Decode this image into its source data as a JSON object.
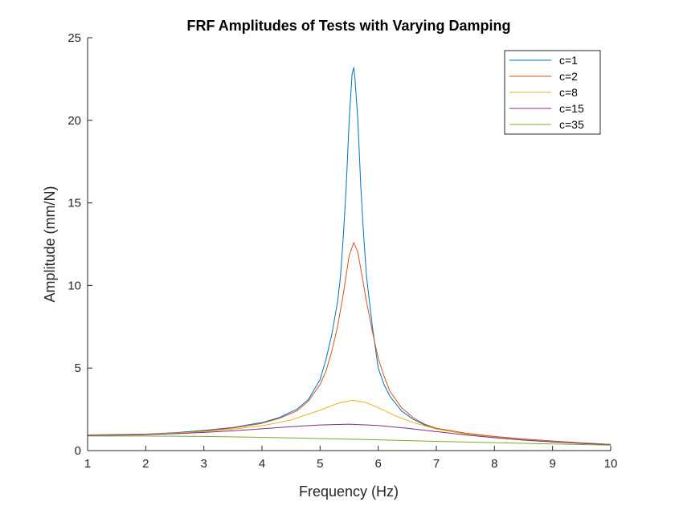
{
  "chart_data": {
    "type": "line",
    "title": "FRF Amplitudes of Tests with Varying Damping",
    "xlabel": "Frequency (Hz)",
    "ylabel": "Amplitude (mm/N)",
    "xlim": [
      1,
      10
    ],
    "ylim": [
      0,
      25
    ],
    "xticks": [
      1,
      2,
      3,
      4,
      5,
      6,
      7,
      8,
      9,
      10
    ],
    "yticks": [
      0,
      5,
      10,
      15,
      20,
      25
    ],
    "grid": false,
    "legend_position": "top-right",
    "series": [
      {
        "name": "c=1",
        "color": "#0072BD",
        "points": [
          [
            1,
            0.95
          ],
          [
            1.5,
            0.97
          ],
          [
            2,
            1.0
          ],
          [
            2.5,
            1.08
          ],
          [
            3,
            1.22
          ],
          [
            3.5,
            1.4
          ],
          [
            4,
            1.7
          ],
          [
            4.3,
            2.0
          ],
          [
            4.6,
            2.5
          ],
          [
            4.8,
            3.1
          ],
          [
            5.0,
            4.3
          ],
          [
            5.1,
            5.5
          ],
          [
            5.2,
            7.0
          ],
          [
            5.3,
            9.0
          ],
          [
            5.35,
            10.5
          ],
          [
            5.4,
            13.0
          ],
          [
            5.45,
            16.0
          ],
          [
            5.5,
            20.0
          ],
          [
            5.55,
            22.8
          ],
          [
            5.58,
            23.2
          ],
          [
            5.6,
            22.5
          ],
          [
            5.65,
            20.0
          ],
          [
            5.7,
            16.0
          ],
          [
            5.75,
            13.0
          ],
          [
            5.8,
            10.5
          ],
          [
            5.9,
            7.5
          ],
          [
            6.0,
            5.0
          ],
          [
            6.1,
            4.0
          ],
          [
            6.2,
            3.3
          ],
          [
            6.4,
            2.4
          ],
          [
            6.6,
            1.9
          ],
          [
            6.8,
            1.55
          ],
          [
            7.0,
            1.35
          ],
          [
            7.5,
            1.05
          ],
          [
            8.0,
            0.85
          ],
          [
            8.5,
            0.7
          ],
          [
            9.0,
            0.58
          ],
          [
            9.5,
            0.47
          ],
          [
            10.0,
            0.38
          ]
        ]
      },
      {
        "name": "c=2",
        "color": "#D95319",
        "points": [
          [
            1,
            0.93
          ],
          [
            1.5,
            0.96
          ],
          [
            2,
            0.99
          ],
          [
            2.5,
            1.06
          ],
          [
            3,
            1.18
          ],
          [
            3.5,
            1.37
          ],
          [
            4,
            1.65
          ],
          [
            4.3,
            1.95
          ],
          [
            4.6,
            2.4
          ],
          [
            4.8,
            3.0
          ],
          [
            5.0,
            4.0
          ],
          [
            5.1,
            4.8
          ],
          [
            5.2,
            6.0
          ],
          [
            5.3,
            7.5
          ],
          [
            5.4,
            9.5
          ],
          [
            5.5,
            11.8
          ],
          [
            5.58,
            12.6
          ],
          [
            5.65,
            12.0
          ],
          [
            5.7,
            11.0
          ],
          [
            5.8,
            9.0
          ],
          [
            5.9,
            7.2
          ],
          [
            6.0,
            5.6
          ],
          [
            6.1,
            4.5
          ],
          [
            6.2,
            3.6
          ],
          [
            6.4,
            2.6
          ],
          [
            6.6,
            2.0
          ],
          [
            6.8,
            1.6
          ],
          [
            7.0,
            1.35
          ],
          [
            7.5,
            1.05
          ],
          [
            8.0,
            0.85
          ],
          [
            8.5,
            0.7
          ],
          [
            9.0,
            0.57
          ],
          [
            9.5,
            0.46
          ],
          [
            10.0,
            0.37
          ]
        ]
      },
      {
        "name": "c=8",
        "color": "#EDB120",
        "points": [
          [
            1,
            0.92
          ],
          [
            1.5,
            0.95
          ],
          [
            2,
            0.98
          ],
          [
            2.5,
            1.05
          ],
          [
            3,
            1.15
          ],
          [
            3.5,
            1.3
          ],
          [
            4,
            1.5
          ],
          [
            4.5,
            1.85
          ],
          [
            5.0,
            2.45
          ],
          [
            5.3,
            2.85
          ],
          [
            5.55,
            3.05
          ],
          [
            5.8,
            2.9
          ],
          [
            6.0,
            2.6
          ],
          [
            6.3,
            2.1
          ],
          [
            6.6,
            1.7
          ],
          [
            7.0,
            1.3
          ],
          [
            7.5,
            1.0
          ],
          [
            8.0,
            0.8
          ],
          [
            8.5,
            0.65
          ],
          [
            9.0,
            0.53
          ],
          [
            9.5,
            0.44
          ],
          [
            10.0,
            0.36
          ]
        ]
      },
      {
        "name": "c=15",
        "color": "#7E2F8E",
        "points": [
          [
            1,
            0.9
          ],
          [
            1.5,
            0.93
          ],
          [
            2,
            0.96
          ],
          [
            2.5,
            1.02
          ],
          [
            3,
            1.1
          ],
          [
            3.5,
            1.2
          ],
          [
            4,
            1.32
          ],
          [
            4.5,
            1.45
          ],
          [
            5.0,
            1.55
          ],
          [
            5.5,
            1.6
          ],
          [
            6.0,
            1.52
          ],
          [
            6.5,
            1.35
          ],
          [
            7.0,
            1.15
          ],
          [
            7.5,
            0.95
          ],
          [
            8.0,
            0.78
          ],
          [
            8.5,
            0.63
          ],
          [
            9.0,
            0.52
          ],
          [
            9.5,
            0.43
          ],
          [
            10.0,
            0.35
          ]
        ]
      },
      {
        "name": "c=35",
        "color": "#77AC30",
        "points": [
          [
            1,
            0.88
          ],
          [
            2,
            0.88
          ],
          [
            3,
            0.86
          ],
          [
            4,
            0.8
          ],
          [
            5,
            0.73
          ],
          [
            6,
            0.65
          ],
          [
            7,
            0.56
          ],
          [
            8,
            0.48
          ],
          [
            9,
            0.4
          ],
          [
            10,
            0.33
          ]
        ]
      }
    ]
  }
}
